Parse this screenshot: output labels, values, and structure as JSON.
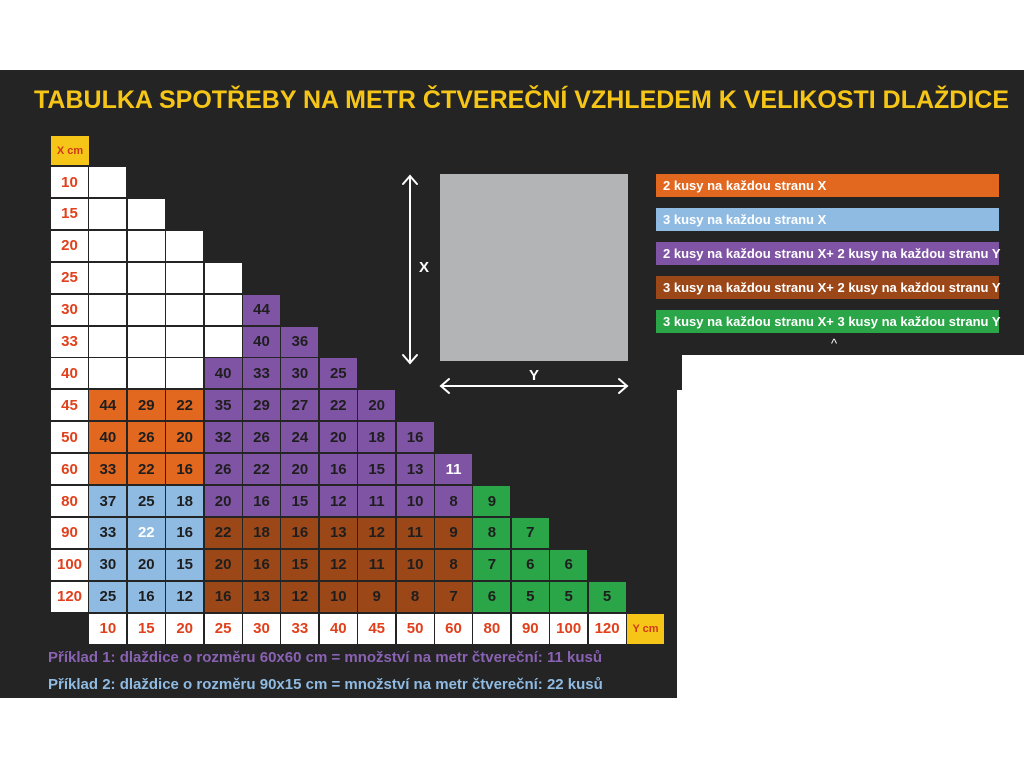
{
  "title": "TABULKA SPOTŘEBY NA METR ČTVEREČNÍ VZHLEDEM K VELIKOSTI DLAŽDICE",
  "x_axis_label": "X cm",
  "y_axis_label": "Y cm",
  "x_values": [
    "10",
    "15",
    "20",
    "25",
    "30",
    "33",
    "40",
    "45",
    "50",
    "60",
    "80",
    "90",
    "100",
    "120"
  ],
  "y_values": [
    "10",
    "15",
    "20",
    "25",
    "30",
    "33",
    "40",
    "45",
    "50",
    "60",
    "80",
    "90",
    "100",
    "120"
  ],
  "colors": {
    "background": "#242424",
    "title": "#f5c518",
    "orange": "#e2671f",
    "blue": "#8fbbe3",
    "purple": "#8054a5",
    "brown": "#9b4718",
    "green": "#2aa548"
  },
  "table_rows": [
    {
      "x": "10",
      "cells": [
        [
          "",
          "white"
        ]
      ]
    },
    {
      "x": "15",
      "cells": [
        [
          "",
          "white"
        ],
        [
          "",
          "white"
        ]
      ]
    },
    {
      "x": "20",
      "cells": [
        [
          "",
          "white"
        ],
        [
          "",
          "white"
        ],
        [
          "",
          "white"
        ]
      ]
    },
    {
      "x": "25",
      "cells": [
        [
          "",
          "white"
        ],
        [
          "",
          "white"
        ],
        [
          "",
          "white"
        ],
        [
          "",
          "white"
        ]
      ]
    },
    {
      "x": "30",
      "cells": [
        [
          "",
          "white"
        ],
        [
          "",
          "white"
        ],
        [
          "",
          "white"
        ],
        [
          "",
          "white"
        ],
        [
          "44",
          "purple"
        ]
      ]
    },
    {
      "x": "33",
      "cells": [
        [
          "",
          "white"
        ],
        [
          "",
          "white"
        ],
        [
          "",
          "white"
        ],
        [
          "",
          "white"
        ],
        [
          "40",
          "purple"
        ],
        [
          "36",
          "purple"
        ]
      ]
    },
    {
      "x": "40",
      "cells": [
        [
          "",
          "white"
        ],
        [
          "",
          "white"
        ],
        [
          "",
          "white"
        ],
        [
          "40",
          "purple"
        ],
        [
          "33",
          "purple"
        ],
        [
          "30",
          "purple"
        ],
        [
          "25",
          "purple"
        ]
      ]
    },
    {
      "x": "45",
      "cells": [
        [
          "44",
          "orange"
        ],
        [
          "29",
          "orange"
        ],
        [
          "22",
          "orange"
        ],
        [
          "35",
          "purple"
        ],
        [
          "29",
          "purple"
        ],
        [
          "27",
          "purple"
        ],
        [
          "22",
          "purple"
        ],
        [
          "20",
          "purple"
        ]
      ]
    },
    {
      "x": "50",
      "cells": [
        [
          "40",
          "orange"
        ],
        [
          "26",
          "orange"
        ],
        [
          "20",
          "orange"
        ],
        [
          "32",
          "purple"
        ],
        [
          "26",
          "purple"
        ],
        [
          "24",
          "purple"
        ],
        [
          "20",
          "purple"
        ],
        [
          "18",
          "purple"
        ],
        [
          "16",
          "purple"
        ]
      ]
    },
    {
      "x": "60",
      "cells": [
        [
          "33",
          "orange"
        ],
        [
          "22",
          "orange"
        ],
        [
          "16",
          "orange"
        ],
        [
          "26",
          "purple"
        ],
        [
          "22",
          "purple"
        ],
        [
          "20",
          "purple"
        ],
        [
          "16",
          "purple"
        ],
        [
          "15",
          "purple"
        ],
        [
          "13",
          "purple"
        ],
        [
          "11",
          "purple hl"
        ]
      ]
    },
    {
      "x": "80",
      "cells": [
        [
          "37",
          "blue"
        ],
        [
          "25",
          "blue"
        ],
        [
          "18",
          "blue"
        ],
        [
          "20",
          "purple"
        ],
        [
          "16",
          "purple"
        ],
        [
          "15",
          "purple"
        ],
        [
          "12",
          "purple"
        ],
        [
          "11",
          "purple"
        ],
        [
          "10",
          "purple"
        ],
        [
          "8",
          "purple"
        ],
        [
          "9",
          "green"
        ]
      ]
    },
    {
      "x": "90",
      "cells": [
        [
          "33",
          "blue"
        ],
        [
          "22",
          "blue hl"
        ],
        [
          "16",
          "blue"
        ],
        [
          "22",
          "brown"
        ],
        [
          "18",
          "brown"
        ],
        [
          "16",
          "brown"
        ],
        [
          "13",
          "brown"
        ],
        [
          "12",
          "brown"
        ],
        [
          "11",
          "brown"
        ],
        [
          "9",
          "brown"
        ],
        [
          "8",
          "green"
        ],
        [
          "7",
          "green"
        ]
      ]
    },
    {
      "x": "100",
      "cells": [
        [
          "30",
          "blue"
        ],
        [
          "20",
          "blue"
        ],
        [
          "15",
          "blue"
        ],
        [
          "20",
          "brown"
        ],
        [
          "16",
          "brown"
        ],
        [
          "15",
          "brown"
        ],
        [
          "12",
          "brown"
        ],
        [
          "11",
          "brown"
        ],
        [
          "10",
          "brown"
        ],
        [
          "8",
          "brown"
        ],
        [
          "7",
          "green"
        ],
        [
          "6",
          "green"
        ],
        [
          "6",
          "green"
        ]
      ]
    },
    {
      "x": "120",
      "cells": [
        [
          "25",
          "blue"
        ],
        [
          "16",
          "blue"
        ],
        [
          "12",
          "blue"
        ],
        [
          "16",
          "brown"
        ],
        [
          "13",
          "brown"
        ],
        [
          "12",
          "brown"
        ],
        [
          "10",
          "brown"
        ],
        [
          "9",
          "brown"
        ],
        [
          "8",
          "brown"
        ],
        [
          "7",
          "brown"
        ],
        [
          "6",
          "green"
        ],
        [
          "5",
          "green"
        ],
        [
          "5",
          "green"
        ],
        [
          "5",
          "green"
        ]
      ]
    }
  ],
  "diagram": {
    "x_label": "X",
    "y_label": "Y"
  },
  "legend": [
    {
      "text": "2 kusy na každou stranu X",
      "color": "#e2671f"
    },
    {
      "text": "3 kusy na každou stranu X",
      "color": "#8fbbe3"
    },
    {
      "text": "2 kusy na každou stranu X+ 2 kusy na každou stranu Y",
      "color": "#8054a5"
    },
    {
      "text": "3 kusy na každou stranu X+ 2 kusy na každou stranu Y",
      "color": "#9b4718"
    },
    {
      "text": "3 kusy na každou stranu X+ 3 kusy na každou stranu Y",
      "color": "#2aa548"
    }
  ],
  "legend_more": "^",
  "examples": [
    {
      "text": "Příklad 1: dlaždice o rozměru 60x60 cm = množství na metr čtvereční: 11 kusů",
      "color": "#8a62b4"
    },
    {
      "text": "Příklad 2: dlaždice o rozměru 90x15 cm = množství na metr čtvereční: 22 kusů",
      "color": "#8fbbe3"
    }
  ]
}
